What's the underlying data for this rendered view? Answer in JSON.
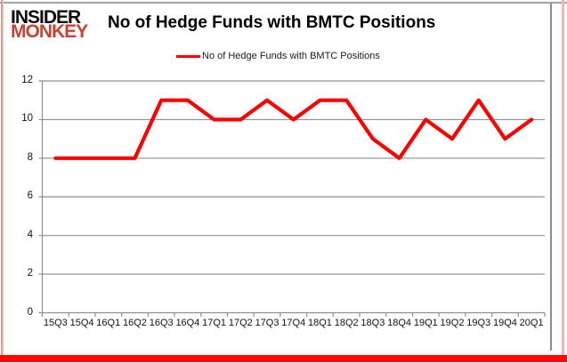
{
  "brand": {
    "line1": "INSIDER",
    "line2": "MONKEY",
    "monkey_color": "#c8422f"
  },
  "header": {
    "title": "No of Hedge Funds with BMTC Positions"
  },
  "legend": {
    "label": "No of Hedge Funds with BMTC Positions",
    "line_color": "#fe0000"
  },
  "chart_data": {
    "type": "line",
    "title": "No of Hedge Funds with BMTC Positions",
    "categories": [
      "15Q3",
      "15Q4",
      "16Q1",
      "16Q2",
      "16Q3",
      "16Q4",
      "17Q1",
      "17Q2",
      "17Q3",
      "17Q4",
      "18Q1",
      "18Q2",
      "18Q3",
      "18Q4",
      "19Q1",
      "19Q2",
      "19Q3",
      "19Q4",
      "20Q1"
    ],
    "series": [
      {
        "name": "No of Hedge Funds with BMTC Positions",
        "values": [
          8,
          8,
          8,
          8,
          11,
          11,
          10,
          10,
          11,
          10,
          11,
          11,
          9,
          8,
          10,
          9,
          11,
          9,
          10
        ],
        "color": "#fe0000"
      }
    ],
    "xlabel": "",
    "ylabel": "",
    "ylim": [
      0,
      12
    ],
    "yticks": [
      0,
      2,
      4,
      6,
      8,
      10,
      12
    ],
    "grid": true,
    "legend_position": "top"
  },
  "colors": {
    "grid": "#8f8f8f",
    "axis": "#8f8f8f",
    "accent_red": "#fe0000",
    "frame_top": "#a3a3a3",
    "frame_right": "#8c8c8c",
    "stripe_pink": "#f5b3ab",
    "bottom_band": "#fd0a04"
  }
}
